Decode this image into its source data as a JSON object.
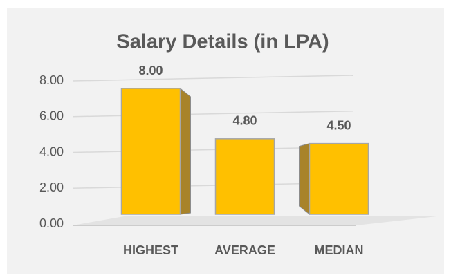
{
  "chart_data": {
    "type": "bar3d",
    "title": "Salary Details (in LPA)",
    "categories": [
      "HIGHEST",
      "AVERAGE",
      "MEDIAN"
    ],
    "values": [
      8,
      4.8,
      4.5
    ],
    "value_labels": [
      "8.00",
      "4.80",
      "4.50"
    ],
    "color": "#ffc000",
    "ylim": [
      0,
      8
    ],
    "yticks": [
      {
        "value": 0,
        "label": "0.00"
      },
      {
        "value": 2,
        "label": "2.00"
      },
      {
        "value": 4,
        "label": "4.00"
      },
      {
        "value": 6,
        "label": "6.00"
      },
      {
        "value": 8,
        "label": "8.00"
      }
    ],
    "grid": true
  }
}
